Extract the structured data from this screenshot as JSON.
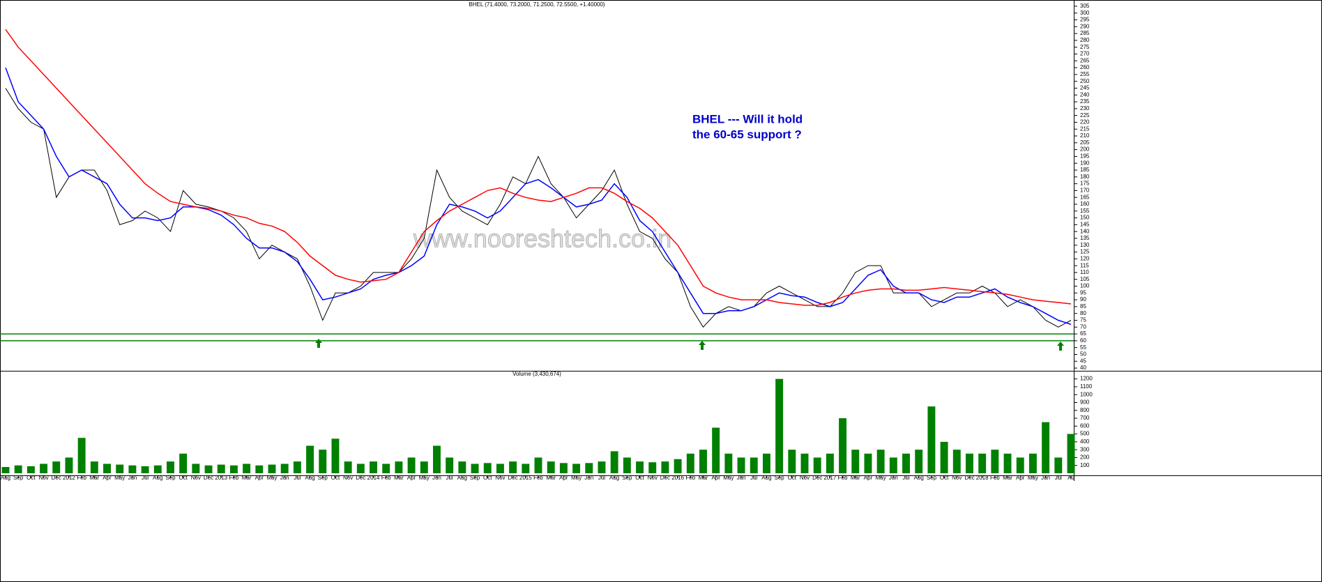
{
  "chart_data": [
    {
      "type": "line",
      "title": "BHEL (71.4000, 73.2000, 71.2500, 72.5500, +1.40000)",
      "annotation": [
        "BHEL --- Will it hold",
        "the 60-65 support ?"
      ],
      "watermark": "www.nooreshtech.co.in",
      "categories": [
        "Aug",
        "Sep",
        "Oct",
        "Nov",
        "Dec",
        "2012",
        "Feb",
        "Mar",
        "Apr",
        "May",
        "Jun",
        "Jul",
        "Aug",
        "Sep",
        "Oct",
        "Nov",
        "Dec",
        "2013",
        "Feb",
        "Mar",
        "Apr",
        "May",
        "Jun",
        "Jul",
        "Aug",
        "Sep",
        "Oct",
        "Nov",
        "Dec",
        "2014",
        "Feb",
        "Mar",
        "Apr",
        "May",
        "Jun",
        "Jul",
        "Aug",
        "Sep",
        "Oct",
        "Nov",
        "Dec",
        "2015",
        "Feb",
        "Mar",
        "Apr",
        "May",
        "Jun",
        "Jul",
        "Aug",
        "Sep",
        "Oct",
        "Nov",
        "Dec",
        "2016",
        "Feb",
        "Mar",
        "Apr",
        "May",
        "Jun",
        "Jul",
        "Aug",
        "Sep",
        "Oct",
        "Nov",
        "Dec",
        "2017",
        "Feb",
        "Mar",
        "Apr",
        "May",
        "Jun",
        "Jul",
        "Aug",
        "Sep",
        "Oct",
        "Nov",
        "Dec",
        "2018",
        "Feb",
        "Mar",
        "Apr",
        "May",
        "Jun",
        "Jul",
        "Au"
      ],
      "series": [
        {
          "color": "#000000",
          "values": [
            245,
            230,
            220,
            215,
            165,
            180,
            185,
            185,
            170,
            145,
            148,
            155,
            150,
            140,
            170,
            160,
            158,
            155,
            150,
            140,
            120,
            130,
            125,
            120,
            100,
            75,
            95,
            95,
            100,
            110,
            110,
            110,
            120,
            135,
            185,
            165,
            155,
            150,
            145,
            160,
            180,
            175,
            195,
            175,
            165,
            150,
            160,
            170,
            185,
            160,
            140,
            135,
            120,
            110,
            85,
            70,
            80,
            85,
            82,
            85,
            95,
            100,
            95,
            90,
            85,
            85,
            95,
            110,
            115,
            115,
            95,
            95,
            95,
            85,
            90,
            95,
            95,
            100,
            95,
            85,
            90,
            85,
            75,
            70,
            75
          ]
        },
        {
          "color": "#0000ff",
          "values": [
            260,
            235,
            225,
            215,
            195,
            180,
            185,
            180,
            175,
            160,
            150,
            150,
            148,
            150,
            158,
            158,
            156,
            152,
            145,
            135,
            128,
            128,
            125,
            118,
            105,
            90,
            92,
            95,
            98,
            105,
            108,
            110,
            115,
            122,
            145,
            160,
            158,
            155,
            150,
            155,
            165,
            175,
            178,
            172,
            165,
            158,
            160,
            163,
            175,
            165,
            148,
            140,
            125,
            110,
            95,
            80,
            80,
            82,
            82,
            85,
            90,
            95,
            93,
            92,
            88,
            85,
            88,
            98,
            108,
            112,
            100,
            95,
            95,
            90,
            88,
            92,
            92,
            95,
            98,
            92,
            88,
            85,
            80,
            75,
            72
          ]
        },
        {
          "color": "#ff0000",
          "values": [
            288,
            275,
            265,
            255,
            245,
            235,
            225,
            215,
            205,
            195,
            185,
            175,
            168,
            162,
            160,
            158,
            157,
            155,
            152,
            150,
            146,
            144,
            140,
            132,
            122,
            115,
            108,
            105,
            103,
            104,
            105,
            110,
            125,
            140,
            148,
            155,
            160,
            165,
            170,
            172,
            168,
            165,
            163,
            162,
            165,
            168,
            172,
            172,
            168,
            162,
            157,
            150,
            140,
            130,
            115,
            100,
            95,
            92,
            90,
            90,
            90,
            88,
            87,
            86,
            86,
            88,
            92,
            95,
            97,
            98,
            98,
            97,
            97,
            98,
            99,
            98,
            97,
            96,
            95,
            94,
            92,
            90,
            89,
            88,
            87
          ]
        }
      ],
      "support_lines": [
        65,
        60
      ],
      "support_color": "#008000",
      "ylim": [
        38,
        307
      ],
      "yticks": [
        40,
        45,
        50,
        55,
        60,
        65,
        70,
        75,
        80,
        85,
        90,
        95,
        100,
        105,
        110,
        115,
        120,
        125,
        130,
        135,
        140,
        145,
        150,
        155,
        160,
        165,
        170,
        175,
        180,
        185,
        190,
        195,
        200,
        205,
        210,
        215,
        220,
        225,
        230,
        235,
        240,
        245,
        250,
        255,
        260,
        265,
        270,
        275,
        280,
        285,
        290,
        295,
        300,
        305
      ]
    },
    {
      "type": "bar",
      "title": "Volume (3,430,674)",
      "color": "#008000",
      "values": [
        80,
        100,
        90,
        120,
        150,
        200,
        450,
        150,
        120,
        110,
        100,
        90,
        100,
        150,
        250,
        120,
        100,
        110,
        100,
        120,
        100,
        110,
        120,
        150,
        350,
        300,
        440,
        150,
        120,
        150,
        120,
        150,
        200,
        150,
        350,
        200,
        150,
        120,
        130,
        120,
        150,
        120,
        200,
        150,
        130,
        120,
        130,
        150,
        280,
        200,
        150,
        140,
        150,
        180,
        250,
        300,
        580,
        250,
        200,
        200,
        250,
        1200,
        300,
        250,
        200,
        250,
        700,
        300,
        250,
        300,
        200,
        250,
        300,
        850,
        400,
        300,
        250,
        250,
        300,
        250,
        200,
        250,
        650,
        200,
        500
      ],
      "ylim": [
        0,
        1250
      ],
      "yticks": [
        100,
        200,
        300,
        400,
        500,
        600,
        700,
        800,
        900,
        1000,
        1100,
        1200
      ]
    }
  ]
}
